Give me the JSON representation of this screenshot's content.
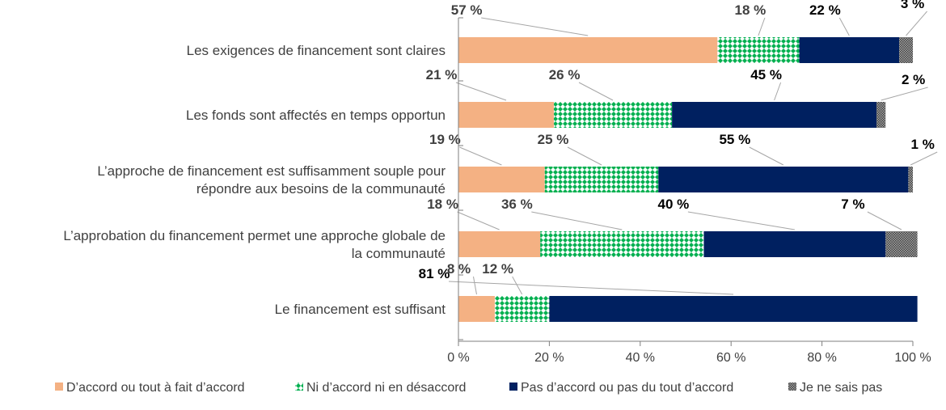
{
  "chart_data": {
    "type": "bar",
    "orientation": "horizontal",
    "stacked": true,
    "categories": [
      [
        "Les exigences de financement sont claires"
      ],
      [
        "Les fonds sont affectés en temps opportun"
      ],
      [
        "L’approche de financement est suffisamment souple pour",
        "répondre aux besoins de la communauté"
      ],
      [
        "L’approbation du financement permet une approche globale de",
        "la communauté"
      ],
      [
        "Le financement est suffisant"
      ]
    ],
    "series": [
      {
        "name": "D’accord ou tout à fait d’accord",
        "values": [
          57,
          21,
          19,
          18,
          8
        ],
        "labels": [
          "57 %",
          "21 %",
          "19 %",
          "18 %",
          "8 %"
        ],
        "color": "#F4B183"
      },
      {
        "name": "Ni d’accord ni en désaccord",
        "values": [
          18,
          26,
          25,
          36,
          12
        ],
        "labels": [
          "18 %",
          "26 %",
          "25 %",
          "36 %",
          "12 %"
        ],
        "color": "#00B050"
      },
      {
        "name": "Pas d’accord ou pas du tout d’accord",
        "values": [
          22,
          45,
          55,
          40,
          81
        ],
        "labels": [
          "22 %",
          "45 %",
          "55 %",
          "40 %",
          "81 %"
        ],
        "color": "#002060"
      },
      {
        "name": "Je ne sais pas",
        "values": [
          3,
          2,
          1,
          7,
          0
        ],
        "labels": [
          "3 %",
          "2 %",
          "1 %",
          "7 %",
          ""
        ],
        "color": "#7F7F7F"
      }
    ],
    "x_ticks": [
      "0 %",
      "20 %",
      "40 %",
      "60 %",
      "80 %",
      "100 %"
    ],
    "xlim": [
      0,
      100
    ],
    "legend": "bottom",
    "grid": false
  }
}
